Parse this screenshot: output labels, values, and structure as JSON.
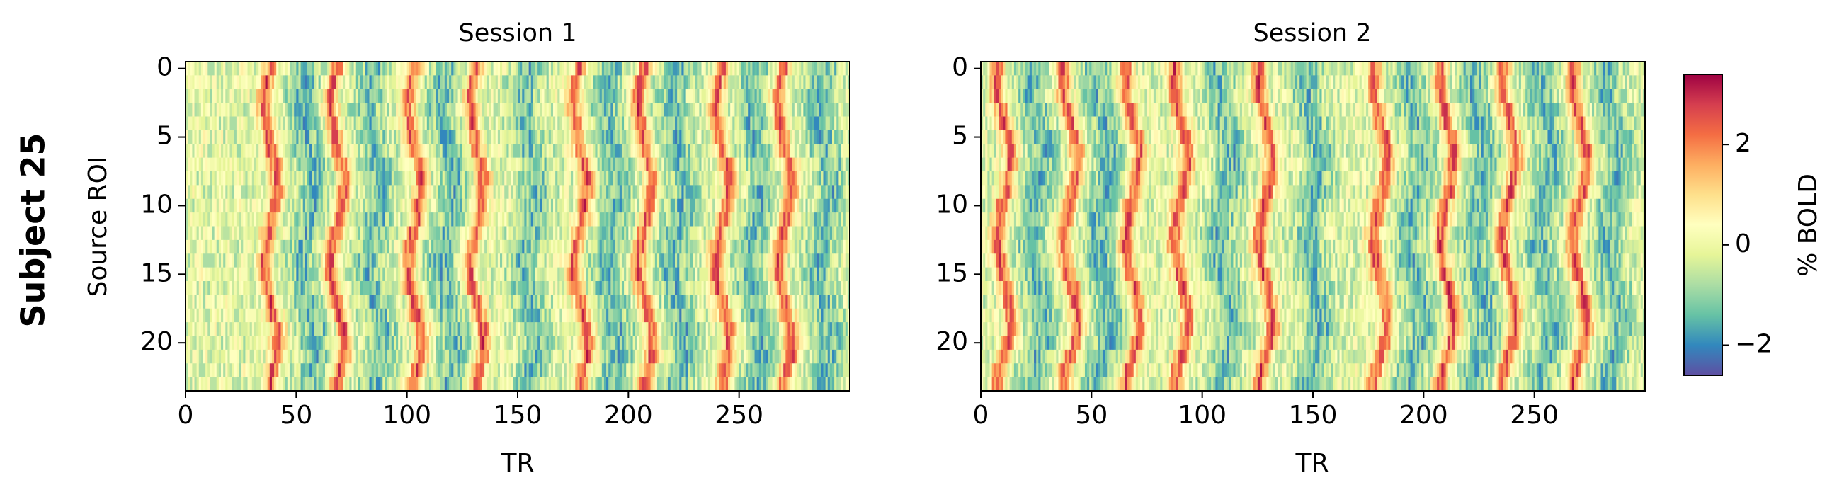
{
  "figure": {
    "row_label": "Subject 25"
  },
  "colorbar": {
    "label": "% BOLD",
    "colormap": "Spectral_r",
    "vmin": -2.6,
    "vmax": 3.4,
    "ticks": [
      -2,
      0,
      2
    ],
    "tick_labels": [
      "−2",
      "0",
      "2"
    ]
  },
  "chart_data": [
    {
      "type": "heatmap",
      "title": "Session 1",
      "xlabel": "TR",
      "ylabel": "Source ROI",
      "n_cols": 300,
      "n_rows": 24,
      "xlim": [
        0,
        300
      ],
      "ylim": [
        23.5,
        -0.5
      ],
      "xticks": [
        0,
        50,
        100,
        150,
        200,
        250
      ],
      "yticks": [
        0,
        5,
        10,
        15,
        20
      ],
      "ridge_trs": [
        38,
        68,
        103,
        131,
        178,
        207,
        242,
        270
      ],
      "trough_trs": [
        55,
        85,
        118,
        155,
        192,
        222,
        257,
        288
      ],
      "approximate_range": [
        -2.5,
        3.3
      ]
    },
    {
      "type": "heatmap",
      "title": "Session 2",
      "xlabel": "TR",
      "ylabel": "",
      "n_cols": 300,
      "n_rows": 24,
      "xlim": [
        0,
        300
      ],
      "ylim": [
        23.5,
        -0.5
      ],
      "xticks": [
        0,
        50,
        100,
        150,
        200,
        250
      ],
      "yticks": [
        0,
        5,
        10,
        15,
        20
      ],
      "ridge_trs": [
        10,
        40,
        68,
        90,
        128,
        180,
        210,
        238,
        270
      ],
      "trough_trs": [
        25,
        55,
        110,
        150,
        196,
        225,
        255,
        285
      ],
      "approximate_range": [
        -2.5,
        3.3
      ]
    }
  ]
}
